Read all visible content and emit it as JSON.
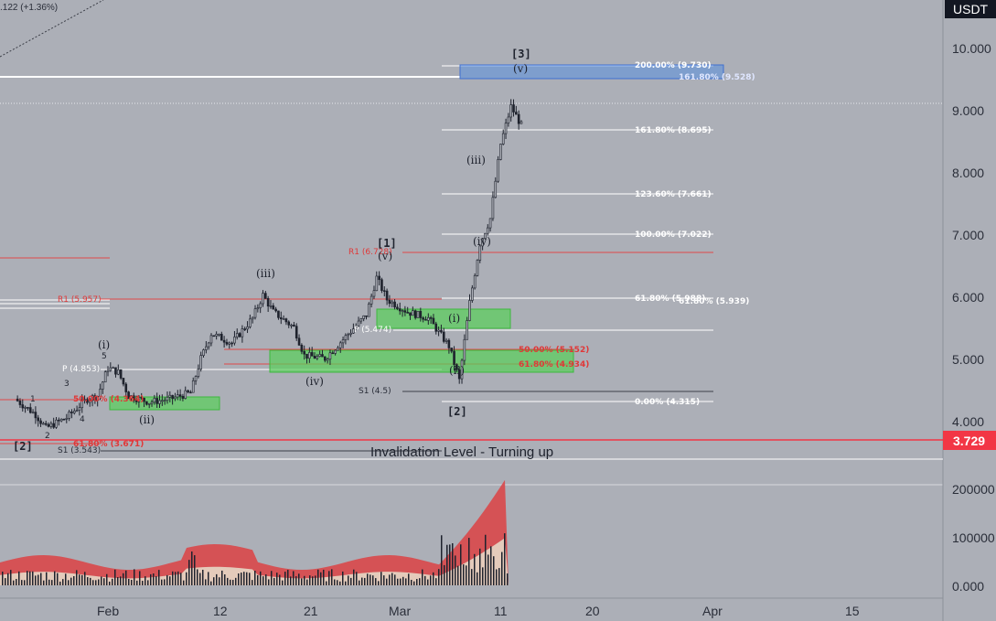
{
  "header": {
    "change_text": ".122 (+1.36%)",
    "currency": "USDT"
  },
  "current_price": {
    "value": "3.729",
    "color": "#f23645"
  },
  "annotation": "Invalidation Level - Turning up",
  "colors": {
    "background": "#acafb7",
    "candle": "#1e222d",
    "resistance": "#e04848",
    "support_box": "#58d058",
    "target_box": "#5a8fe0"
  },
  "chart_data": {
    "type": "candlestick",
    "price_axis": {
      "ticks": [
        "10.000",
        "9.000",
        "8.000",
        "7.000",
        "6.000",
        "5.000",
        "4.000"
      ],
      "scale": "linear"
    },
    "volume_axis": {
      "ticks": [
        "200000",
        "100000",
        "0.000"
      ]
    },
    "x_axis": {
      "ticks": [
        "Feb",
        "12",
        "21",
        "Mar",
        "11",
        "20",
        "Apr",
        "15"
      ]
    },
    "price_close_path": [
      [
        "Jan 23",
        4.35
      ],
      [
        "Jan 25",
        4.1
      ],
      [
        "Jan 26",
        3.88
      ],
      [
        "Jan 28",
        4.05
      ],
      [
        "Jan 30",
        4.35
      ],
      [
        "Jan 31",
        4.4
      ],
      [
        "Feb 01",
        4.85
      ],
      [
        "Feb 02",
        4.78
      ],
      [
        "Feb 03",
        4.4
      ],
      [
        "Feb 05",
        4.3
      ],
      [
        "Feb 07",
        4.35
      ],
      [
        "Feb 09",
        4.45
      ],
      [
        "Feb 10",
        5.0
      ],
      [
        "Feb 11",
        5.4
      ],
      [
        "Feb 13",
        5.25
      ],
      [
        "Feb 15",
        5.65
      ],
      [
        "Feb 16",
        6.02
      ],
      [
        "Feb 17",
        5.75
      ],
      [
        "Feb 19",
        5.5
      ],
      [
        "Feb 20",
        5.05
      ],
      [
        "Feb 22",
        5.0
      ],
      [
        "Feb 24",
        5.35
      ],
      [
        "Feb 26",
        5.7
      ],
      [
        "Feb 27",
        6.3
      ],
      [
        "Feb 28",
        5.95
      ],
      [
        "Mar 02",
        5.75
      ],
      [
        "Mar 04",
        5.65
      ],
      [
        "Mar 06",
        5.2
      ],
      [
        "Mar 07",
        4.65
      ],
      [
        "Mar 08",
        5.9
      ],
      [
        "Mar 09",
        6.85
      ],
      [
        "Mar 10",
        7.25
      ],
      [
        "Mar 11",
        8.45
      ],
      [
        "Mar 12",
        9.05
      ],
      [
        "Mar 13",
        8.75
      ]
    ],
    "wave_labels": [
      "[2]",
      "1",
      "2",
      "3",
      "4",
      "5",
      "(i)",
      "(ii)",
      "(iii)",
      "(iv)",
      "(v)",
      "[1]",
      "(i)",
      "(ii)",
      "(iii)",
      "(iv)",
      "(v)",
      "[3]",
      "[2]"
    ],
    "fib_levels": [
      "200.00% (9.730)",
      "161.80% (9.528)",
      "161.80% (8.695)",
      "123.60% (7.661)",
      "100.00% (7.022)",
      "61.80% (5.988)",
      "61.80% (5.939)",
      "50.00% (5.152)",
      "61.80% (4.934)",
      "0.00% (4.315)",
      "50.00% (4.364)",
      "61.80% (3.671)"
    ],
    "pivot_levels": [
      "R1 (6.728)",
      "R1 (5.957)",
      "P (4.853)",
      "P (5.474)",
      "S1 (4.5)",
      "S1 (3.543)"
    ]
  }
}
